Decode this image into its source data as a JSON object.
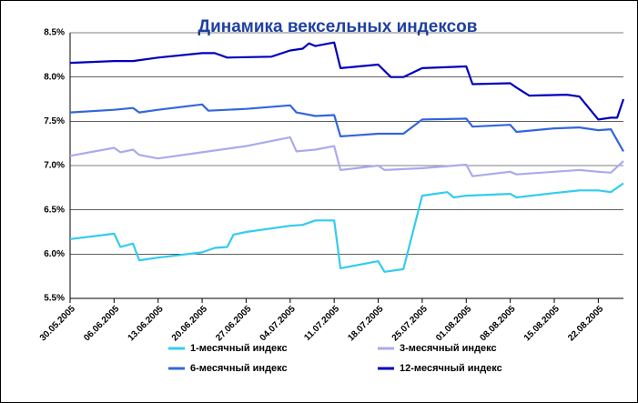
{
  "chart_data": {
    "type": "line",
    "title": "Динамика вексельных индексов",
    "xlim": [
      "30.05.2005",
      "26.08.2005"
    ],
    "xticks": [
      "30.05.2005",
      "06.06.2005",
      "13.06.2005",
      "20.06.2005",
      "27.06.2005",
      "04.07.2005",
      "11.07.2005",
      "18.07.2005",
      "25.07.2005",
      "01.08.2005",
      "08.08.2005",
      "15.08.2005",
      "22.08.2005"
    ],
    "ylim": [
      5.5,
      8.5
    ],
    "yticks": [
      {
        "value": 5.5,
        "label": "5.5%"
      },
      {
        "value": 6.0,
        "label": "6.0%"
      },
      {
        "value": 6.5,
        "label": "6.5%"
      },
      {
        "value": 7.0,
        "label": "7.0%"
      },
      {
        "value": 7.5,
        "label": "7.5%"
      },
      {
        "value": 8.0,
        "label": "8.0%"
      },
      {
        "value": 8.5,
        "label": "8.5%"
      }
    ],
    "grid": true,
    "legend": "bottom",
    "series": [
      {
        "name": "1-месячный индекс",
        "color": "#33ccee",
        "x": [
          "30.05.2005",
          "06.06.2005",
          "07.06.2005",
          "09.06.2005",
          "10.06.2005",
          "13.06.2005",
          "20.06.2005",
          "22.06.2005",
          "24.06.2005",
          "25.06.2005",
          "27.06.2005",
          "04.07.2005",
          "06.07.2005",
          "08.07.2005",
          "11.07.2005",
          "12.07.2005",
          "18.07.2005",
          "19.07.2005",
          "22.07.2005",
          "25.07.2005",
          "27.07.2005",
          "29.07.2005",
          "30.07.2005",
          "01.08.2005",
          "08.08.2005",
          "09.08.2005",
          "15.08.2005",
          "19.08.2005",
          "22.08.2005",
          "24.08.2005",
          "26.08.2005"
        ],
        "values": [
          6.17,
          6.23,
          6.08,
          6.12,
          5.93,
          5.96,
          6.02,
          6.07,
          6.08,
          6.22,
          6.25,
          6.32,
          6.33,
          6.38,
          6.38,
          5.84,
          5.92,
          5.8,
          5.83,
          6.66,
          6.68,
          6.7,
          6.64,
          6.66,
          6.68,
          6.64,
          6.69,
          6.72,
          6.72,
          6.7,
          6.8
        ]
      },
      {
        "name": "3-месячный индекс",
        "color": "#aaaaee",
        "x": [
          "30.05.2005",
          "06.06.2005",
          "07.06.2005",
          "09.06.2005",
          "10.06.2005",
          "13.06.2005",
          "20.06.2005",
          "27.06.2005",
          "04.07.2005",
          "05.07.2005",
          "08.07.2005",
          "11.07.2005",
          "12.07.2005",
          "18.07.2005",
          "19.07.2005",
          "25.07.2005",
          "01.08.2005",
          "02.08.2005",
          "08.08.2005",
          "09.08.2005",
          "15.08.2005",
          "19.08.2005",
          "22.08.2005",
          "24.08.2005",
          "26.08.2005"
        ],
        "values": [
          7.11,
          7.2,
          7.15,
          7.18,
          7.12,
          7.08,
          7.15,
          7.22,
          7.32,
          7.16,
          7.18,
          7.22,
          6.95,
          7.0,
          6.95,
          6.97,
          7.01,
          6.88,
          6.93,
          6.9,
          6.93,
          6.95,
          6.93,
          6.92,
          7.05
        ]
      },
      {
        "name": "6-месячный индекс",
        "color": "#3366dd",
        "x": [
          "30.05.2005",
          "06.06.2005",
          "09.06.2005",
          "10.06.2005",
          "13.06.2005",
          "20.06.2005",
          "21.06.2005",
          "27.06.2005",
          "04.07.2005",
          "05.07.2005",
          "08.07.2005",
          "11.07.2005",
          "12.07.2005",
          "18.07.2005",
          "22.07.2005",
          "25.07.2005",
          "01.08.2005",
          "02.08.2005",
          "08.08.2005",
          "09.08.2005",
          "15.08.2005",
          "19.08.2005",
          "22.08.2005",
          "24.08.2005",
          "26.08.2005"
        ],
        "values": [
          7.6,
          7.63,
          7.65,
          7.6,
          7.63,
          7.69,
          7.62,
          7.64,
          7.68,
          7.6,
          7.56,
          7.57,
          7.33,
          7.36,
          7.36,
          7.52,
          7.53,
          7.44,
          7.46,
          7.38,
          7.42,
          7.43,
          7.4,
          7.41,
          7.16
        ]
      },
      {
        "name": "12-месячный индекс",
        "color": "#0000bb",
        "x": [
          "30.05.2005",
          "06.06.2005",
          "09.06.2005",
          "13.06.2005",
          "20.06.2005",
          "22.06.2005",
          "24.06.2005",
          "01.07.2005",
          "04.07.2005",
          "06.07.2005",
          "07.07.2005",
          "08.07.2005",
          "11.07.2005",
          "12.07.2005",
          "18.07.2005",
          "20.07.2005",
          "22.07.2005",
          "25.07.2005",
          "01.08.2005",
          "02.08.2005",
          "08.08.2005",
          "09.08.2005",
          "11.08.2005",
          "17.08.2005",
          "19.08.2005",
          "22.08.2005",
          "24.08.2005",
          "25.08.2005",
          "26.08.2005"
        ],
        "values": [
          8.16,
          8.18,
          8.18,
          8.22,
          8.27,
          8.27,
          8.22,
          8.23,
          8.3,
          8.32,
          8.38,
          8.35,
          8.39,
          8.1,
          8.14,
          8.0,
          8.0,
          8.1,
          8.12,
          7.92,
          7.93,
          7.88,
          7.79,
          7.8,
          7.78,
          7.52,
          7.54,
          7.54,
          7.75
        ]
      }
    ]
  }
}
